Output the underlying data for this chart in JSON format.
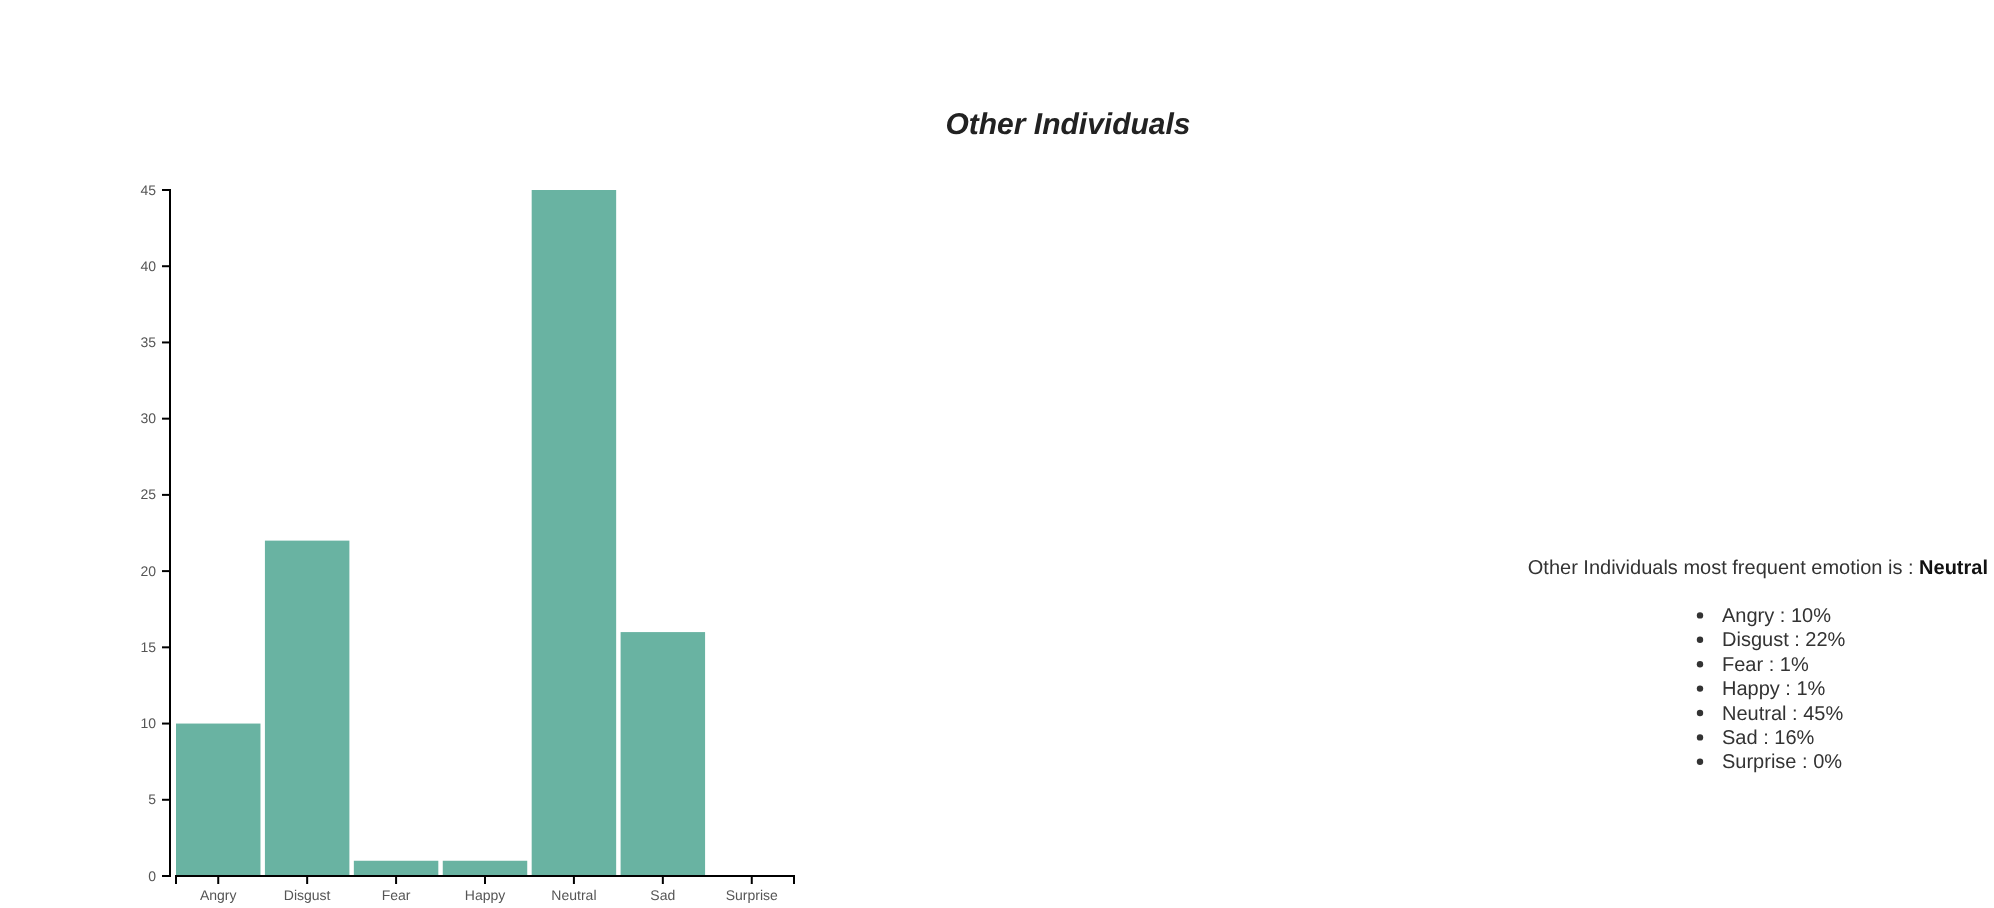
{
  "chart_data": {
    "type": "bar",
    "title": "Other Individuals",
    "categories": [
      "Angry",
      "Disgust",
      "Fear",
      "Happy",
      "Neutral",
      "Sad",
      "Surprise"
    ],
    "values": [
      10,
      22,
      1,
      1,
      45,
      16,
      0
    ],
    "color": "#69b3a2",
    "ylim": [
      0,
      45
    ],
    "yticks": [
      0,
      5,
      10,
      15,
      20,
      25,
      30,
      35,
      40,
      45
    ],
    "annotations": [
      "Other Individuals most frequent emotion is :",
      "Neutral",
      "Angry : 10%",
      "Disgust : 22%",
      "Fear : 1%",
      "Happy : 1%",
      "Neutral : 45%",
      "Sad : 16%",
      "Surprise : 0%"
    ]
  }
}
